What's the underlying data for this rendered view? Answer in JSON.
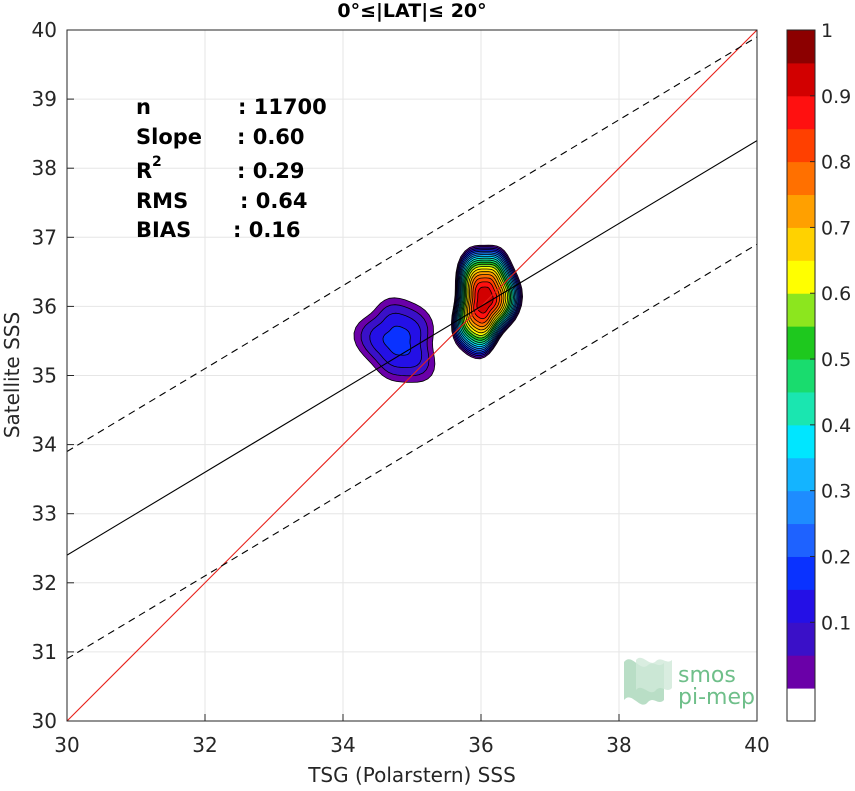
{
  "chart_data": {
    "type": "contour-scatter",
    "title": "0°≤|LAT|≤ 20°",
    "xlabel": "TSG (Polarstern) SSS",
    "ylabel": "Satellite SSS",
    "xlim": [
      30,
      40
    ],
    "ylim": [
      30,
      40
    ],
    "xticks": [
      30,
      32,
      34,
      36,
      38,
      40
    ],
    "yticks": [
      30,
      31,
      32,
      33,
      34,
      35,
      36,
      37,
      38,
      39,
      40
    ],
    "grid": true,
    "stats": {
      "n_label": "n",
      "n_value": ": 11700",
      "slope_label": "Slope",
      "slope_value": ": 0.60",
      "r2_label": "R",
      "r2_sup": "2",
      "r2_value": ": 0.29",
      "rms_label": "RMS",
      "rms_value": ": 0.64",
      "bias_label": "BIAS",
      "bias_value": ": 0.16"
    },
    "lines": [
      {
        "role": "one-to-one",
        "color": "#e8201a",
        "style": "solid",
        "slope": 1.0,
        "intercept": 0.0
      },
      {
        "role": "regression",
        "color": "#000000",
        "style": "solid",
        "slope": 0.6,
        "intercept": 14.4
      },
      {
        "role": "regression-upper",
        "color": "#000000",
        "style": "dashed",
        "slope": 0.6,
        "intercept": 15.9
      },
      {
        "role": "regression-lower",
        "color": "#000000",
        "style": "dashed",
        "slope": 0.6,
        "intercept": 12.9
      }
    ],
    "density_clusters": [
      {
        "center": [
          34.8,
          35.5
        ],
        "peak": 0.22
      },
      {
        "center": [
          36.05,
          36.1
        ],
        "peak": 1.0
      }
    ],
    "contour_levels": [
      0.05,
      0.1,
      0.15,
      0.2,
      0.25,
      0.3,
      0.35,
      0.4,
      0.45,
      0.5,
      0.55,
      0.6,
      0.65,
      0.7,
      0.75,
      0.8,
      0.85,
      0.9,
      0.95
    ],
    "colorbar": {
      "ticks": [
        0.1,
        0.2,
        0.3,
        0.4,
        0.5,
        0.6,
        0.7,
        0.8,
        0.9,
        1
      ],
      "tick_labels": [
        "0.1",
        "0.2",
        "0.3",
        "0.4",
        "0.5",
        "0.6",
        "0.7",
        "0.8",
        "0.9",
        "1"
      ],
      "colors": [
        "#ffffff",
        "#6a00a8",
        "#3a10c8",
        "#2410e6",
        "#0a32ff",
        "#1e62ff",
        "#1e8cff",
        "#14b4ff",
        "#00e6ff",
        "#1ae6b0",
        "#19dc6e",
        "#1ec81e",
        "#8ce61e",
        "#ffff00",
        "#ffd200",
        "#ffa000",
        "#ff7000",
        "#ff4000",
        "#ff1010",
        "#d20000",
        "#8c0000"
      ]
    },
    "watermark": {
      "line1": "smos",
      "line2": "pi-mep"
    }
  }
}
